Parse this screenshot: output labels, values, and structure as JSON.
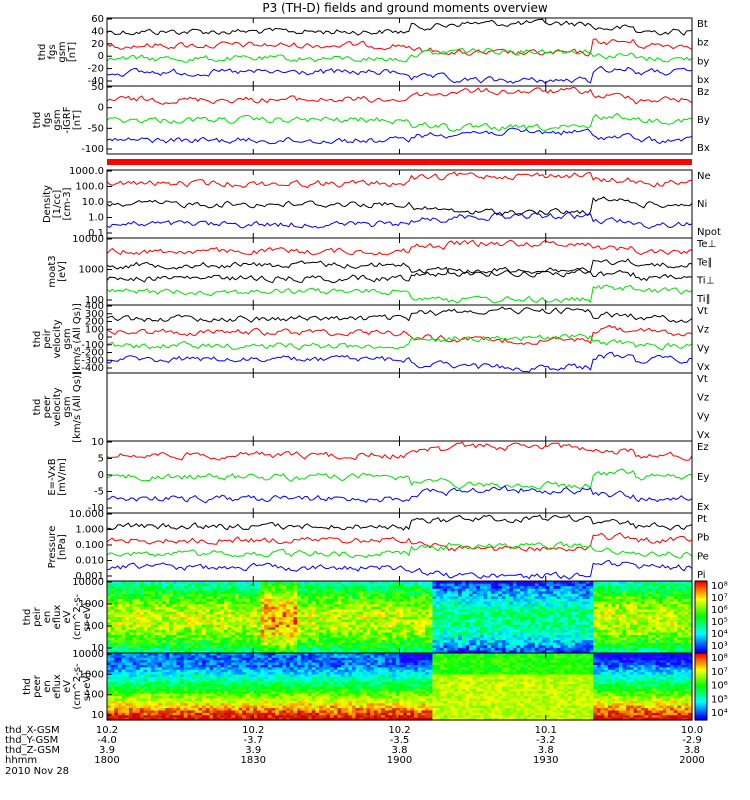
{
  "chart_data": {
    "type": "line",
    "title": "P3 (TH-D) fields and ground moments overview",
    "colors": {
      "black": "#000000",
      "red": "#ff0000",
      "green": "#00e000",
      "blue": "#0000ff"
    },
    "panels": [
      {
        "id": "fgs",
        "ylabel": [
          "thd",
          "fgs",
          "gsm",
          "[nT]"
        ],
        "yticks": [
          "60",
          "40",
          "20",
          "0",
          "-20",
          "-40"
        ],
        "legend": [
          {
            "text": "Bt",
            "color": "#000000"
          },
          {
            "text": "bz",
            "color": "#ff0000"
          },
          {
            "text": "by",
            "color": "#00e000"
          },
          {
            "text": "bx",
            "color": "#0000ff"
          }
        ]
      },
      {
        "id": "fgs_ng",
        "ylabel": [
          "thd",
          "fgs",
          "gsm",
          "-IGRF",
          "[nT]"
        ],
        "yticks": [
          "50",
          "0",
          "-50",
          "-100"
        ],
        "legend": [
          {
            "text": "Bz",
            "color": "#ff0000"
          },
          {
            "text": "By",
            "color": "#00e000"
          },
          {
            "text": "Bx",
            "color": "#0000ff"
          }
        ]
      },
      {
        "id": "density",
        "ylabel": [
          "Density",
          "[1/cc]",
          "[cm-3]"
        ],
        "yticks": [
          "1000.0",
          "100.0",
          "10.0",
          "1.0",
          "0.1"
        ],
        "legend": [
          {
            "text": "Ne",
            "color": "#ff0000"
          },
          {
            "text": "Ni",
            "color": "#000000"
          },
          {
            "text": "Npot",
            "color": "#0000ff"
          }
        ]
      },
      {
        "id": "temp",
        "ylabel": [
          "moat3",
          "[eV]"
        ],
        "yticks": [
          "10000",
          "1000",
          "100"
        ],
        "legend": [
          {
            "text": "Te⊥",
            "color": "#ff0000"
          },
          {
            "text": "Te∥",
            "color": "#000000"
          },
          {
            "text": "Ti⊥",
            "color": "#000000"
          },
          {
            "text": "Ti∥",
            "color": "#00e000"
          }
        ]
      },
      {
        "id": "vi",
        "ylabel": [
          "thd",
          "peir",
          "velocity",
          "gsm",
          "[km/s (All Qs)]"
        ],
        "yticks": [
          "400",
          "300",
          "200",
          "100",
          "0",
          "-100",
          "-200",
          "-300",
          "-400"
        ],
        "legend": [
          {
            "text": "Vt",
            "color": "#000000"
          },
          {
            "text": "Vz",
            "color": "#ff0000"
          },
          {
            "text": "Vy",
            "color": "#00e000"
          },
          {
            "text": "Vx",
            "color": "#0000ff"
          }
        ]
      },
      {
        "id": "ve",
        "ylabel": [
          "thd",
          "peer",
          "velocity",
          "gsm",
          "[km/s (All Qs)]"
        ],
        "yticks": [],
        "legend": [
          {
            "text": "Vt",
            "color": "#000000"
          },
          {
            "text": "Vz",
            "color": "#ff0000"
          },
          {
            "text": "Vy",
            "color": "#00e000"
          },
          {
            "text": "Vx",
            "color": "#0000ff"
          }
        ]
      },
      {
        "id": "efield",
        "ylabel": [
          "E=-VxB",
          "[mV/m]"
        ],
        "yticks": [
          "10",
          "5",
          "0",
          "-5",
          "-10"
        ],
        "legend": [
          {
            "text": "Ez",
            "color": "#ff0000"
          },
          {
            "text": "Ey",
            "color": "#00e000"
          },
          {
            "text": "Ex",
            "color": "#0000ff"
          }
        ]
      },
      {
        "id": "pressure",
        "ylabel": [
          "Pressure",
          "[nPa]"
        ],
        "yticks": [
          "10.000",
          "1.000",
          "0.100",
          "0.010",
          "0.001"
        ],
        "legend": [
          {
            "text": "Pt",
            "color": "#000000"
          },
          {
            "text": "Pb",
            "color": "#ff0000"
          },
          {
            "text": "Pe",
            "color": "#00e000"
          },
          {
            "text": "Pi",
            "color": "#0000ff"
          }
        ]
      },
      {
        "id": "peir_spec",
        "ylabel": [
          "thd",
          "peir",
          "en",
          "eflux",
          "eV",
          "(cm^2-s-",
          "sr-eV)"
        ],
        "yticks": [
          "10000",
          "1000",
          "100",
          "10"
        ],
        "colorbar": [
          "10⁸",
          "10⁷",
          "10⁶",
          "10⁵",
          "10⁴",
          "10³"
        ]
      },
      {
        "id": "peer_spec",
        "ylabel": [
          "thd",
          "peer",
          "en",
          "eflux",
          "eV",
          "(cm^2-s-",
          "sr-eV)"
        ],
        "yticks": [
          "10000",
          "1000",
          "100",
          "10"
        ],
        "colorbar": [
          "10⁸",
          "10⁷",
          "10⁶",
          "10⁵",
          "10⁴"
        ]
      }
    ],
    "x_axis": {
      "row_labels": [
        "thd_X-GSM",
        "thd_Y-GSM",
        "thd_Z-GSM",
        "hhmm",
        "2010 Nov 28"
      ],
      "columns": [
        {
          "x": "10.2",
          "y": "-4.0",
          "z": "3.9",
          "t": "1800"
        },
        {
          "x": "10.2",
          "y": "-3.7",
          "z": "3.9",
          "t": "1830"
        },
        {
          "x": "10.2",
          "y": "-3.5",
          "z": "3.8",
          "t": "1900"
        },
        {
          "x": "10.1",
          "y": "-3.2",
          "z": "3.8",
          "t": "1930"
        },
        {
          "x": "10.0",
          "y": "-2.9",
          "z": "3.8",
          "t": "2000"
        }
      ]
    }
  }
}
